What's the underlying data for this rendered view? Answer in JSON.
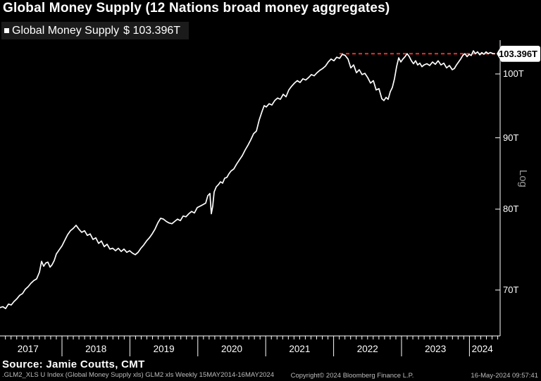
{
  "title": "Global Money Supply (12 Nations broad money aggregates)",
  "legend": {
    "label": "Global Money Supply",
    "value": "$ 103.396T"
  },
  "footer": {
    "source": "Source: Jamie Coutts, CMT",
    "meta": ".GLM2_XLS U Index (Global Money Supply xls) GLM2 xls  Weekly 15MAY2014-16MAY2024",
    "copyright": "Copyright© 2024 Bloomberg Finance L.P.",
    "timestamp": "16-May-2024 09:57:41"
  },
  "colors": {
    "line": "#ffffff",
    "annotation_red": "#e9332d",
    "axis": "#ffffff",
    "background": "#000000",
    "legend_bg": "#1b1b1b",
    "muted_text": "#9a9a9a"
  },
  "chart_data": {
    "type": "line",
    "title": "Global Money Supply (12 Nations broad money aggregates)",
    "unit": "trillion USD",
    "grid": false,
    "legend_position": "top-left",
    "last_value": 103.396,
    "last_value_label": "103.396T",
    "y_axis": {
      "scale": "log",
      "label": "Log",
      "side": "right",
      "range": [
        66,
        106
      ],
      "ticks": [
        {
          "label": "100T",
          "value": 100
        },
        {
          "label": "90T",
          "value": 90
        },
        {
          "label": "80T",
          "value": 80
        },
        {
          "label": "70T",
          "value": 70
        }
      ]
    },
    "x_axis": {
      "range": [
        2016.95,
        2024.45
      ],
      "year_labels": [
        "2017",
        "2018",
        "2019",
        "2020",
        "2021",
        "2022",
        "2023",
        "2024"
      ]
    },
    "annotation": {
      "type": "dashed_line",
      "value": 103.396,
      "from_year": 2022.087,
      "color": "#e9332d"
    },
    "series": [
      {
        "name": "Global Money Supply",
        "points": [
          [
            2017.087,
            68.0
          ],
          [
            2017.129,
            68.1
          ],
          [
            2017.17,
            67.9
          ],
          [
            2017.212,
            68.4
          ],
          [
            2017.253,
            68.3
          ],
          [
            2017.295,
            68.7
          ],
          [
            2017.336,
            69.0
          ],
          [
            2017.378,
            69.4
          ],
          [
            2017.419,
            69.6
          ],
          [
            2017.461,
            70.1
          ],
          [
            2017.502,
            70.4
          ],
          [
            2017.544,
            70.8
          ],
          [
            2017.585,
            71.1
          ],
          [
            2017.627,
            71.3
          ],
          [
            2017.668,
            72.1
          ],
          [
            2017.699,
            73.4
          ],
          [
            2017.73,
            72.8
          ],
          [
            2017.761,
            73.2
          ],
          [
            2017.793,
            73.3
          ],
          [
            2017.824,
            72.7
          ],
          [
            2017.855,
            73.0
          ],
          [
            2017.886,
            73.5
          ],
          [
            2017.917,
            74.3
          ],
          [
            2017.959,
            74.8
          ],
          [
            2018.0,
            75.3
          ],
          [
            2018.041,
            76.0
          ],
          [
            2018.083,
            76.7
          ],
          [
            2018.124,
            77.2
          ],
          [
            2018.166,
            77.5
          ],
          [
            2018.207,
            77.9
          ],
          [
            2018.249,
            77.4
          ],
          [
            2018.29,
            77.0
          ],
          [
            2018.332,
            77.2
          ],
          [
            2018.373,
            76.6
          ],
          [
            2018.415,
            76.8
          ],
          [
            2018.456,
            76.1
          ],
          [
            2018.498,
            76.3
          ],
          [
            2018.539,
            75.6
          ],
          [
            2018.581,
            75.9
          ],
          [
            2018.622,
            75.2
          ],
          [
            2018.664,
            75.5
          ],
          [
            2018.705,
            74.9
          ],
          [
            2018.747,
            75.0
          ],
          [
            2018.788,
            74.7
          ],
          [
            2018.83,
            75.0
          ],
          [
            2018.871,
            74.6
          ],
          [
            2018.913,
            74.9
          ],
          [
            2018.954,
            74.5
          ],
          [
            2018.996,
            74.7
          ],
          [
            2019.037,
            74.4
          ],
          [
            2019.079,
            74.2
          ],
          [
            2019.12,
            74.5
          ],
          [
            2019.162,
            75.0
          ],
          [
            2019.203,
            75.4
          ],
          [
            2019.245,
            75.9
          ],
          [
            2019.286,
            76.3
          ],
          [
            2019.328,
            76.8
          ],
          [
            2019.369,
            77.4
          ],
          [
            2019.411,
            78.2
          ],
          [
            2019.452,
            78.8
          ],
          [
            2019.494,
            78.7
          ],
          [
            2019.535,
            78.4
          ],
          [
            2019.577,
            78.2
          ],
          [
            2019.618,
            78.1
          ],
          [
            2019.66,
            78.4
          ],
          [
            2019.701,
            78.7
          ],
          [
            2019.743,
            78.5
          ],
          [
            2019.784,
            79.1
          ],
          [
            2019.826,
            79.0
          ],
          [
            2019.867,
            79.4
          ],
          [
            2019.909,
            79.7
          ],
          [
            2019.95,
            79.5
          ],
          [
            2019.992,
            80.2
          ],
          [
            2020.033,
            80.4
          ],
          [
            2020.075,
            80.6
          ],
          [
            2020.116,
            80.8
          ],
          [
            2020.147,
            81.8
          ],
          [
            2020.178,
            82.1
          ],
          [
            2020.199,
            79.4
          ],
          [
            2020.22,
            80.4
          ],
          [
            2020.241,
            82.3
          ],
          [
            2020.272,
            83.0
          ],
          [
            2020.303,
            83.3
          ],
          [
            2020.334,
            83.7
          ],
          [
            2020.365,
            83.5
          ],
          [
            2020.396,
            84.2
          ],
          [
            2020.427,
            84.3
          ],
          [
            2020.459,
            84.8
          ],
          [
            2020.49,
            85.2
          ],
          [
            2020.531,
            85.5
          ],
          [
            2020.573,
            86.2
          ],
          [
            2020.614,
            86.8
          ],
          [
            2020.656,
            87.4
          ],
          [
            2020.697,
            88.2
          ],
          [
            2020.739,
            88.9
          ],
          [
            2020.78,
            89.7
          ],
          [
            2020.822,
            90.6
          ],
          [
            2020.863,
            91.0
          ],
          [
            2020.905,
            92.7
          ],
          [
            2020.946,
            94.0
          ],
          [
            2020.977,
            94.9
          ],
          [
            2021.008,
            94.7
          ],
          [
            2021.05,
            95.2
          ],
          [
            2021.091,
            95.0
          ],
          [
            2021.133,
            95.7
          ],
          [
            2021.174,
            96.1
          ],
          [
            2021.216,
            95.9
          ],
          [
            2021.257,
            96.7
          ],
          [
            2021.299,
            96.3
          ],
          [
            2021.34,
            97.4
          ],
          [
            2021.382,
            98.0
          ],
          [
            2021.423,
            98.5
          ],
          [
            2021.465,
            98.9
          ],
          [
            2021.506,
            98.6
          ],
          [
            2021.548,
            99.2
          ],
          [
            2021.589,
            99.0
          ],
          [
            2021.631,
            99.4
          ],
          [
            2021.672,
            99.9
          ],
          [
            2021.714,
            99.7
          ],
          [
            2021.755,
            100.2
          ],
          [
            2021.797,
            100.6
          ],
          [
            2021.838,
            100.9
          ],
          [
            2021.88,
            101.3
          ],
          [
            2021.921,
            102.0
          ],
          [
            2021.963,
            102.5
          ],
          [
            2022.004,
            102.2
          ],
          [
            2022.046,
            102.8
          ],
          [
            2022.087,
            102.6
          ],
          [
            2022.129,
            103.3
          ],
          [
            2022.17,
            103.1
          ],
          [
            2022.212,
            102.5
          ],
          [
            2022.253,
            101.0
          ],
          [
            2022.295,
            101.5
          ],
          [
            2022.336,
            100.2
          ],
          [
            2022.378,
            100.7
          ],
          [
            2022.419,
            99.9
          ],
          [
            2022.461,
            100.1
          ],
          [
            2022.502,
            99.4
          ],
          [
            2022.544,
            98.5
          ],
          [
            2022.585,
            98.9
          ],
          [
            2022.627,
            97.4
          ],
          [
            2022.668,
            97.6
          ],
          [
            2022.71,
            96.0
          ],
          [
            2022.741,
            95.7
          ],
          [
            2022.772,
            96.2
          ],
          [
            2022.803,
            95.9
          ],
          [
            2022.834,
            97.1
          ],
          [
            2022.865,
            97.8
          ],
          [
            2022.896,
            99.2
          ],
          [
            2022.927,
            101.2
          ],
          [
            2022.958,
            102.7
          ],
          [
            2022.99,
            102.0
          ],
          [
            2023.021,
            102.5
          ],
          [
            2023.052,
            102.9
          ],
          [
            2023.083,
            103.4
          ],
          [
            2023.114,
            102.9
          ],
          [
            2023.145,
            102.2
          ],
          [
            2023.176,
            101.7
          ],
          [
            2023.207,
            102.2
          ],
          [
            2023.238,
            101.5
          ],
          [
            2023.27,
            101.8
          ],
          [
            2023.301,
            101.2
          ],
          [
            2023.332,
            101.5
          ],
          [
            2023.373,
            101.7
          ],
          [
            2023.415,
            101.4
          ],
          [
            2023.456,
            102.0
          ],
          [
            2023.498,
            101.6
          ],
          [
            2023.539,
            102.2
          ],
          [
            2023.581,
            101.5
          ],
          [
            2023.622,
            101.8
          ],
          [
            2023.664,
            101.0
          ],
          [
            2023.705,
            101.4
          ],
          [
            2023.747,
            100.7
          ],
          [
            2023.778,
            100.9
          ],
          [
            2023.809,
            101.5
          ],
          [
            2023.84,
            102.0
          ],
          [
            2023.871,
            102.5
          ],
          [
            2023.902,
            103.1
          ],
          [
            2023.934,
            103.4
          ],
          [
            2023.965,
            102.9
          ],
          [
            2023.996,
            103.3
          ],
          [
            2024.027,
            103.1
          ],
          [
            2024.058,
            103.9
          ],
          [
            2024.089,
            103.4
          ],
          [
            2024.12,
            103.7
          ],
          [
            2024.152,
            103.2
          ],
          [
            2024.183,
            103.6
          ],
          [
            2024.214,
            103.3
          ],
          [
            2024.245,
            103.7
          ],
          [
            2024.276,
            103.4
          ],
          [
            2024.307,
            103.6
          ],
          [
            2024.349,
            103.4
          ],
          [
            2024.37,
            103.396
          ]
        ]
      }
    ]
  }
}
